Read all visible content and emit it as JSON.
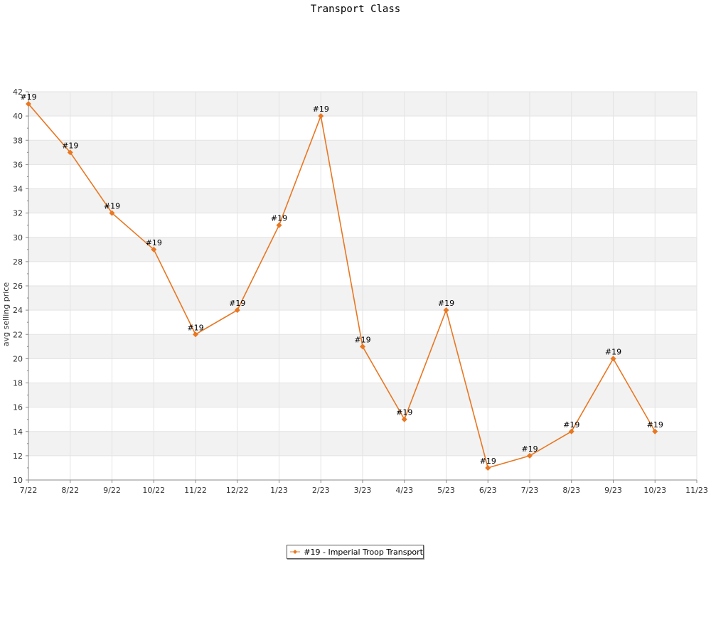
{
  "chart_data": {
    "type": "line",
    "title": "Transport Class",
    "xlabel": "",
    "ylabel": "avg selling price",
    "categories": [
      "7/22",
      "8/22",
      "9/22",
      "10/22",
      "11/22",
      "12/22",
      "1/23",
      "2/23",
      "3/23",
      "4/23",
      "5/23",
      "6/23",
      "7/23",
      "8/23",
      "9/23",
      "10/23",
      "11/23"
    ],
    "ylim": [
      10,
      42
    ],
    "yticks": [
      10,
      12,
      14,
      16,
      18,
      20,
      22,
      24,
      26,
      28,
      30,
      32,
      34,
      36,
      38,
      40,
      42
    ],
    "grid": true,
    "legend_position": "bottom",
    "series": [
      {
        "name": "#19 - Imperial Troop Transport",
        "point_label": "#19",
        "color": "#e87722",
        "values": [
          41,
          37,
          32,
          29,
          22,
          24,
          31,
          40,
          21,
          15,
          24,
          11,
          12,
          14,
          20,
          14,
          null
        ]
      }
    ]
  }
}
